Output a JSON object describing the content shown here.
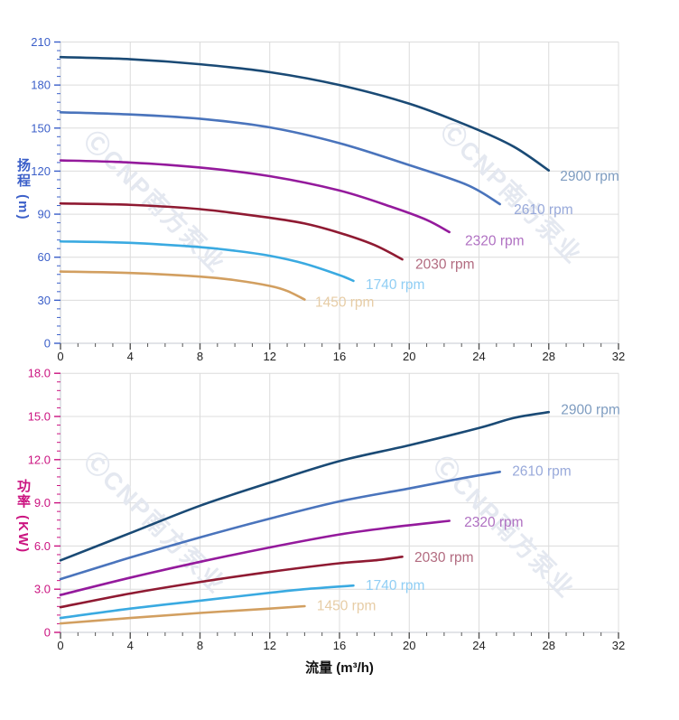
{
  "labels": {
    "head_axis": "扬程 (m)",
    "power_axis": "功率 (KW)",
    "flow_axis": "流量 (m³/h)"
  },
  "watermark": {
    "text": "ⒸCNP南方泵业",
    "color": "#e4e8f0",
    "rotation_deg": 45
  },
  "colors": {
    "background": "#ffffff",
    "grid": "#dcdcdc",
    "spine": "#c6cad2",
    "x_tick": "#555555",
    "x_tick_label": "#222222",
    "flow_axis_title": "#111111",
    "head_axis": "#3b5fc9",
    "power_axis": "#cb1380"
  },
  "chart_data": [
    {
      "id": "head",
      "type": "line",
      "title": "",
      "xlabel": "流量 (m³/h)",
      "ylabel": "扬程 (m)",
      "xlim": [
        0,
        32
      ],
      "ylim": [
        0,
        210
      ],
      "x_major_step": 4,
      "x_minor_step": 1,
      "y_major_step": 30,
      "y_minor_step": 6,
      "y_tick_decimals": 0,
      "grid": true,
      "legend_position": "curve-end-labels",
      "series": [
        {
          "name": "2900 rpm",
          "color": "#1a4a75",
          "label_color": "#7e9cc0",
          "label_at": [
            28.65,
            116
          ],
          "points": [
            [
              0,
              199.5
            ],
            [
              4,
              198
            ],
            [
              8,
              194.5
            ],
            [
              12,
              189
            ],
            [
              16,
              180
            ],
            [
              20,
              167
            ],
            [
              23.5,
              151
            ],
            [
              26,
              137
            ],
            [
              28,
              120.5
            ]
          ]
        },
        {
          "name": "2610 rpm",
          "color": "#4a74bc",
          "label_color": "#98a9da",
          "label_at": [
            26.0,
            92.5
          ],
          "points": [
            [
              0,
              161
            ],
            [
              4,
              159.5
            ],
            [
              8,
              156.5
            ],
            [
              12,
              150.5
            ],
            [
              16,
              139.5
            ],
            [
              19.8,
              125
            ],
            [
              23.3,
              110.5
            ],
            [
              25.2,
              97
            ]
          ]
        },
        {
          "name": "2320 rpm",
          "color": "#941a9c",
          "label_color": "#b071c2",
          "label_at": [
            23.2,
            71
          ],
          "points": [
            [
              0,
              127.5
            ],
            [
              4,
              126
            ],
            [
              8,
              122.5
            ],
            [
              12,
              116.5
            ],
            [
              16,
              106.5
            ],
            [
              19,
              95
            ],
            [
              21,
              86
            ],
            [
              22.3,
              77.5
            ]
          ]
        },
        {
          "name": "2030 rpm",
          "color": "#8f1a32",
          "label_color": "#b26b80",
          "label_at": [
            20.35,
            54.5
          ],
          "points": [
            [
              0,
              97.5
            ],
            [
              4,
              96.5
            ],
            [
              8,
              93.5
            ],
            [
              12,
              87.5
            ],
            [
              14,
              83.5
            ],
            [
              16,
              77
            ],
            [
              18,
              68.5
            ],
            [
              19.6,
              58.5
            ]
          ]
        },
        {
          "name": "1740 rpm",
          "color": "#3aaae1",
          "label_color": "#90cef4",
          "label_at": [
            17.5,
            40.5
          ],
          "points": [
            [
              0,
              71
            ],
            [
              4,
              70
            ],
            [
              8,
              67
            ],
            [
              10,
              64.5
            ],
            [
              12,
              61
            ],
            [
              14,
              55.5
            ],
            [
              16,
              47.5
            ],
            [
              16.8,
              43.5
            ]
          ]
        },
        {
          "name": "1450 rpm",
          "color": "#d29f60",
          "label_color": "#e7cda6",
          "label_at": [
            14.6,
            28
          ],
          "points": [
            [
              0,
              50
            ],
            [
              4,
              49
            ],
            [
              8,
              46.5
            ],
            [
              10,
              44
            ],
            [
              12,
              40
            ],
            [
              13,
              36.5
            ],
            [
              14,
              30.5
            ]
          ]
        }
      ]
    },
    {
      "id": "power",
      "type": "line",
      "title": "",
      "xlabel": "流量 (m³/h)",
      "ylabel": "功率 (KW)",
      "xlim": [
        0,
        32
      ],
      "ylim": [
        0,
        18
      ],
      "x_major_step": 4,
      "x_minor_step": 1,
      "y_major_step": 3,
      "y_minor_step": 0.6,
      "y_tick_decimals": 1,
      "grid": true,
      "legend_position": "curve-end-labels",
      "series": [
        {
          "name": "2900 rpm",
          "color": "#1a4a75",
          "label_color": "#7e9cc0",
          "label_at": [
            28.7,
            15.4
          ],
          "points": [
            [
              0,
              5.0
            ],
            [
              4,
              6.9
            ],
            [
              8,
              8.8
            ],
            [
              12,
              10.4
            ],
            [
              16,
              11.9
            ],
            [
              20,
              13.0
            ],
            [
              24,
              14.2
            ],
            [
              26,
              14.9
            ],
            [
              28,
              15.3
            ]
          ]
        },
        {
          "name": "2610 rpm",
          "color": "#4a74bc",
          "label_color": "#98a9da",
          "label_at": [
            25.9,
            11.15
          ],
          "points": [
            [
              0,
              3.7
            ],
            [
              4,
              5.2
            ],
            [
              8,
              6.6
            ],
            [
              12,
              7.9
            ],
            [
              16,
              9.1
            ],
            [
              20,
              10.0
            ],
            [
              23,
              10.7
            ],
            [
              25.2,
              11.15
            ]
          ]
        },
        {
          "name": "2320 rpm",
          "color": "#941a9c",
          "label_color": "#b071c2",
          "label_at": [
            23.15,
            7.6
          ],
          "points": [
            [
              0,
              2.6
            ],
            [
              4,
              3.8
            ],
            [
              8,
              4.9
            ],
            [
              12,
              5.9
            ],
            [
              16,
              6.8
            ],
            [
              19,
              7.3
            ],
            [
              22.3,
              7.75
            ]
          ]
        },
        {
          "name": "2030 rpm",
          "color": "#8f1a32",
          "label_color": "#b26b80",
          "label_at": [
            20.3,
            5.15
          ],
          "points": [
            [
              0,
              1.75
            ],
            [
              4,
              2.7
            ],
            [
              8,
              3.5
            ],
            [
              12,
              4.2
            ],
            [
              16,
              4.8
            ],
            [
              18,
              5.0
            ],
            [
              19.6,
              5.25
            ]
          ]
        },
        {
          "name": "1740 rpm",
          "color": "#3aaae1",
          "label_color": "#90cef4",
          "label_at": [
            17.5,
            3.2
          ],
          "points": [
            [
              0,
              1.0
            ],
            [
              4,
              1.65
            ],
            [
              8,
              2.2
            ],
            [
              12,
              2.75
            ],
            [
              14,
              3.0
            ],
            [
              16.8,
              3.25
            ]
          ]
        },
        {
          "name": "1450 rpm",
          "color": "#d29f60",
          "label_color": "#e7cda6",
          "label_at": [
            14.7,
            1.8
          ],
          "points": [
            [
              0,
              0.62
            ],
            [
              4,
              1.0
            ],
            [
              8,
              1.35
            ],
            [
              12,
              1.65
            ],
            [
              14,
              1.82
            ]
          ]
        }
      ]
    }
  ]
}
